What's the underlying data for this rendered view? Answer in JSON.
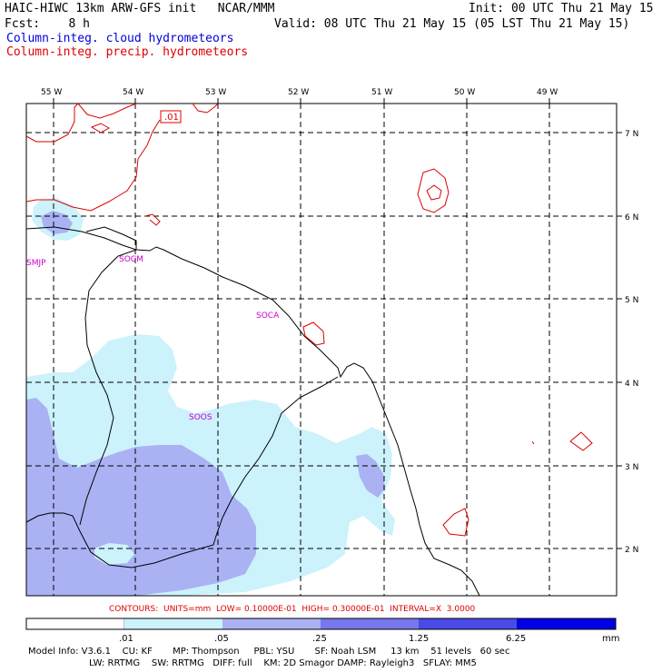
{
  "header": {
    "line1_left": "HAIC-HIWC 13km ARW-GFS init   NCAR/MMM",
    "line1_right": "Init: 00 UTC Thu 21 May 15",
    "line2_left": "Fcst:    8 h",
    "line2_right": "Valid: 08 UTC Thu 21 May 15 (05 LST Thu 21 May 15)",
    "legend_cloud": "Column-integ. cloud hydrometeors",
    "legend_precip": "Column-integ. precip. hydrometeors"
  },
  "map": {
    "lon_labels": [
      "55 W",
      "54 W",
      "53 W",
      "52 W",
      "51 W",
      "50 W",
      "49 W"
    ],
    "lat_labels": [
      "7 N",
      "6 N",
      "5 N",
      "4 N",
      "3 N",
      "2 N"
    ],
    "stations": [
      {
        "id": "SMJP"
      },
      {
        "id": "SOCM"
      },
      {
        "id": "SOCA"
      },
      {
        "id": "SOOS"
      }
    ],
    "contour_label": ".01",
    "colors": {
      "cloud_lightest": "#ccf2fb",
      "cloud_light": "#aab2f4",
      "precip_contour": "#dd0000",
      "coastline": "#000000"
    }
  },
  "footer": {
    "contours_line": "CONTOURS:  UNITS=mm  LOW= 0.10000E-01  HIGH= 0.30000E-01  INTERVAL=X  3.0000",
    "colorbar_ticks": [
      ".01",
      ".05",
      ".25",
      "1.25",
      "6.25"
    ],
    "colorbar_unit": "mm",
    "colorbar_colors": [
      "#ffffff",
      "#ccf2fb",
      "#aab2f4",
      "#7777ee",
      "#4a4ae6",
      "#0000e6"
    ],
    "model_info_1": "Model Info: V3.6.1    CU: KF       MP: Thompson     PBL: YSU       SF: Noah LSM     13 km    51 levels   60 sec",
    "model_info_2": "LW: RRTMG    SW: RRTMG   DIFF: full    KM: 2D Smagor DAMP: Rayleigh3   SFLAY: MM5"
  }
}
